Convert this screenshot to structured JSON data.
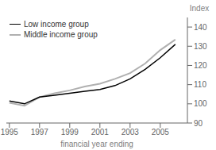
{
  "chart_data": {
    "type": "line",
    "x": [
      1995,
      1996,
      1997,
      1998,
      1999,
      2000,
      2001,
      2002,
      2003,
      2004,
      2005,
      2006
    ],
    "series": [
      {
        "name": "Low income group",
        "color": "#000000",
        "values": [
          101.5,
          100.0,
          103.5,
          104.5,
          105.5,
          106.5,
          107.5,
          109.5,
          113.0,
          118.0,
          124.0,
          131.0
        ]
      },
      {
        "name": "Middle income group",
        "color": "#b0b0b0",
        "values": [
          100.5,
          99.0,
          103.5,
          105.5,
          107.0,
          109.0,
          110.5,
          113.0,
          116.0,
          121.0,
          128.0,
          133.5
        ]
      }
    ],
    "ylabel": "Index",
    "xlabel": "financial year ending",
    "xlim": [
      1994.8,
      2006.8
    ],
    "xticks": [
      1995,
      1997,
      1999,
      2001,
      2003,
      2005
    ],
    "ylim": [
      90,
      145
    ],
    "yticks": [
      90,
      100,
      110,
      120,
      130,
      140
    ],
    "grid": false,
    "legend": "upper left"
  }
}
